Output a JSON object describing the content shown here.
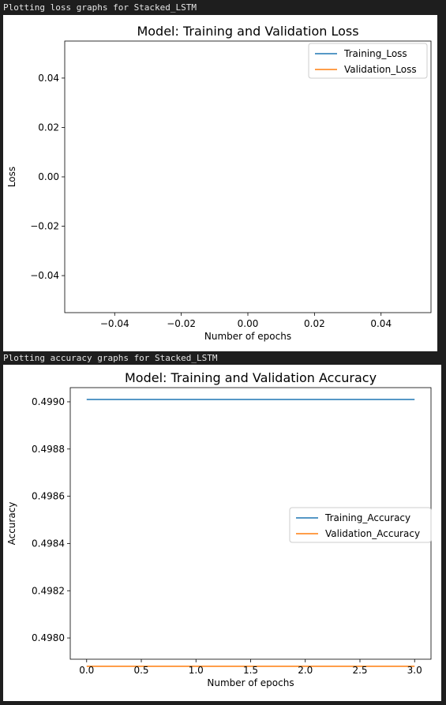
{
  "outputs": [
    {
      "label": "Plotting loss graphs for Stacked_LSTM"
    },
    {
      "label": "Plotting accuracy graphs for Stacked_LSTM"
    }
  ],
  "chart_data": [
    {
      "type": "line",
      "title": "Model: Training and Validation Loss",
      "xlabel": "Number of epochs",
      "ylabel": "Loss",
      "xlim": [
        -0.055,
        0.055
      ],
      "ylim": [
        -0.055,
        0.055
      ],
      "xticks": [
        -0.04,
        -0.02,
        0.0,
        0.02,
        0.04
      ],
      "xtick_labels": [
        "−0.04",
        "−0.02",
        "0.00",
        "0.02",
        "0.04"
      ],
      "yticks": [
        0.04,
        0.02,
        0.0,
        -0.02,
        -0.04
      ],
      "ytick_labels": [
        "0.04",
        "0.02",
        "0.00",
        "−0.02",
        "−0.04"
      ],
      "legend_position": "top-right",
      "grid": false,
      "series": [
        {
          "name": "Training_Loss",
          "color": "#1f77b4",
          "x": [],
          "y": []
        },
        {
          "name": "Validation_Loss",
          "color": "#ff7f0e",
          "x": [],
          "y": []
        }
      ]
    },
    {
      "type": "line",
      "title": "Model: Training and Validation Accuracy",
      "xlabel": "Number of epochs",
      "ylabel": "Accuracy",
      "xlim": [
        -0.15,
        3.15
      ],
      "ylim": [
        0.49791,
        0.49906
      ],
      "xticks": [
        0.0,
        0.5,
        1.0,
        1.5,
        2.0,
        2.5,
        3.0
      ],
      "xtick_labels": [
        "0.0",
        "0.5",
        "1.0",
        "1.5",
        "2.0",
        "2.5",
        "3.0"
      ],
      "yticks": [
        0.499,
        0.4988,
        0.4986,
        0.4984,
        0.4982,
        0.498
      ],
      "ytick_labels": [
        "0.4990",
        "0.4988",
        "0.4986",
        "0.4984",
        "0.4982",
        "0.4980"
      ],
      "legend_position": "center-right",
      "grid": false,
      "series": [
        {
          "name": "Training_Accuracy",
          "color": "#1f77b4",
          "x": [
            0,
            1,
            2,
            3
          ],
          "y": [
            0.49901,
            0.49901,
            0.49901,
            0.49901
          ]
        },
        {
          "name": "Validation_Accuracy",
          "color": "#ff7f0e",
          "x": [
            0,
            1,
            2,
            3
          ],
          "y": [
            0.49788,
            0.49788,
            0.49788,
            0.49788
          ]
        }
      ]
    }
  ]
}
